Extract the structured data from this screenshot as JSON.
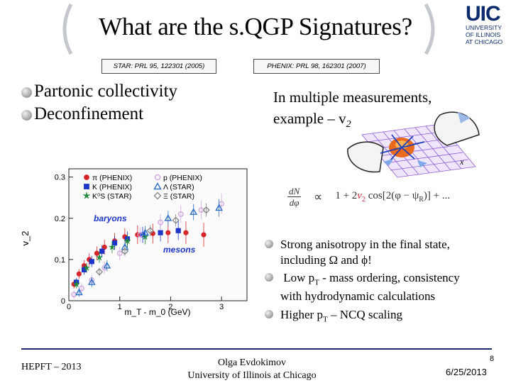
{
  "slide": {
    "title": "What are the s.QGP Signatures?",
    "logo": {
      "word": "UIC",
      "line1": "UNIVERSITY",
      "line2": "OF ILLINOIS",
      "line3": "AT CHICAGO"
    },
    "ref_left": "STAR: PRL 95, 122301 (2005)",
    "ref_right": "PHENIX: PRL 98, 162301 (2007)",
    "left_bullets": [
      "Partonic collectivity",
      "Deconfinement"
    ],
    "right_intro_line1": "In multiple measurements,",
    "right_intro_line2": "example – v",
    "right_intro_sub": "2",
    "sketch_axis": "x",
    "formula": {
      "lhs_num": "dN",
      "lhs_den": "dφ",
      "rel": "∝",
      "rhs_a": "1 + 2",
      "rhs_v": "v",
      "rhs_v_sub": "2",
      "rhs_b": " cos[2(φ − ψ",
      "rhs_b_sub": "R",
      "rhs_c": ")] + ..."
    },
    "bullets": {
      "b1_line1": "Strong anisotropy in the final state,",
      "b1_line2": "including Ω and ϕ!",
      "b2_line1a": " Low p",
      "b2_line1_sub": "T",
      "b2_line1b": " - mass ordering, consistency",
      "b2_line2": "with hydrodynamic calculations",
      "b3a": "Higher p",
      "b3_sub": "T",
      "b3b": " – NCQ scaling"
    },
    "footer": {
      "left": "HEPFT – 2013",
      "center_line1": "Olga Evdokimov",
      "center_line2": "University of Illinois at Chicago",
      "page": "8",
      "date": "6/25/2013"
    }
  },
  "colors": {
    "pi": "#d6262b",
    "p": "#d1a8e2",
    "K": "#1e35c9",
    "Lambda": "#2a6fc6",
    "K0s": "#1f8a3a",
    "Xi": "#8a8a8a",
    "logo": "#0a2a6b"
  },
  "chart_data": {
    "type": "scatter",
    "xlabel": "m_T - m_0 (GeV)",
    "ylabel": "v_2",
    "xlim": [
      0,
      3.5
    ],
    "ylim": [
      0,
      0.32
    ],
    "x_ticks": [
      "0",
      "1",
      "2",
      "3"
    ],
    "y_ticks": [
      "0",
      "0.1",
      "0.2",
      "0.3"
    ],
    "annotations": [
      "baryons",
      "mesons"
    ],
    "legend_placement": "top",
    "legend": [
      {
        "name": "π (PHENIX)",
        "marker": "circle",
        "filled": true,
        "color": "#d6262b"
      },
      {
        "name": "p (PHENIX)",
        "marker": "circle",
        "filled": false,
        "color": "#d1a8e2"
      },
      {
        "name": "K (PHENIX)",
        "marker": "square",
        "filled": true,
        "color": "#1e35c9"
      },
      {
        "name": "Λ (STAR)",
        "marker": "triangle",
        "filled": false,
        "color": "#2a6fc6"
      },
      {
        "name": "K⁰S (STAR)",
        "marker": "star",
        "filled": true,
        "color": "#1f8a3a"
      },
      {
        "name": "Ξ (STAR)",
        "marker": "diamond",
        "filled": false,
        "color": "#8a8a8a"
      }
    ],
    "series": [
      {
        "name": "π (PHENIX)",
        "marker": "circle",
        "filled": true,
        "color": "#d6262b",
        "x": [
          0.1,
          0.2,
          0.3,
          0.4,
          0.55,
          0.7,
          0.9,
          1.1,
          1.35,
          1.65,
          1.95,
          2.3,
          2.65
        ],
        "y": [
          0.04,
          0.065,
          0.085,
          0.1,
          0.115,
          0.13,
          0.145,
          0.155,
          0.16,
          0.163,
          0.165,
          0.165,
          0.16
        ]
      },
      {
        "name": "K (PHENIX)",
        "marker": "square",
        "filled": true,
        "color": "#1e35c9",
        "x": [
          0.15,
          0.3,
          0.45,
          0.65,
          0.9,
          1.15,
          1.45,
          1.8,
          2.15
        ],
        "y": [
          0.045,
          0.075,
          0.095,
          0.12,
          0.14,
          0.15,
          0.16,
          0.165,
          0.17
        ]
      },
      {
        "name": "K⁰S (STAR)",
        "marker": "star",
        "filled": true,
        "color": "#1f8a3a",
        "x": [
          0.15,
          0.35,
          0.6,
          0.85,
          1.15,
          1.5
        ],
        "y": [
          0.04,
          0.08,
          0.105,
          0.13,
          0.145,
          0.155
        ]
      },
      {
        "name": "p (PHENIX)",
        "marker": "circle",
        "filled": false,
        "color": "#d1a8e2",
        "x": [
          0.1,
          0.25,
          0.45,
          0.7,
          1.0,
          1.4,
          1.8,
          2.2,
          2.6,
          3.0
        ],
        "y": [
          0.015,
          0.03,
          0.05,
          0.08,
          0.115,
          0.16,
          0.19,
          0.21,
          0.22,
          0.235
        ]
      },
      {
        "name": "Λ (STAR)",
        "marker": "triangle",
        "filled": false,
        "color": "#2a6fc6",
        "x": [
          0.2,
          0.45,
          0.75,
          1.1,
          1.5,
          1.95,
          2.45,
          2.95
        ],
        "y": [
          0.02,
          0.045,
          0.085,
          0.13,
          0.165,
          0.2,
          0.215,
          0.225
        ]
      },
      {
        "name": "Ξ (STAR)",
        "marker": "diamond",
        "filled": false,
        "color": "#8a8a8a",
        "x": [
          0.6,
          1.1,
          1.6,
          2.1,
          2.7
        ],
        "y": [
          0.07,
          0.12,
          0.17,
          0.195,
          0.22
        ]
      }
    ]
  }
}
